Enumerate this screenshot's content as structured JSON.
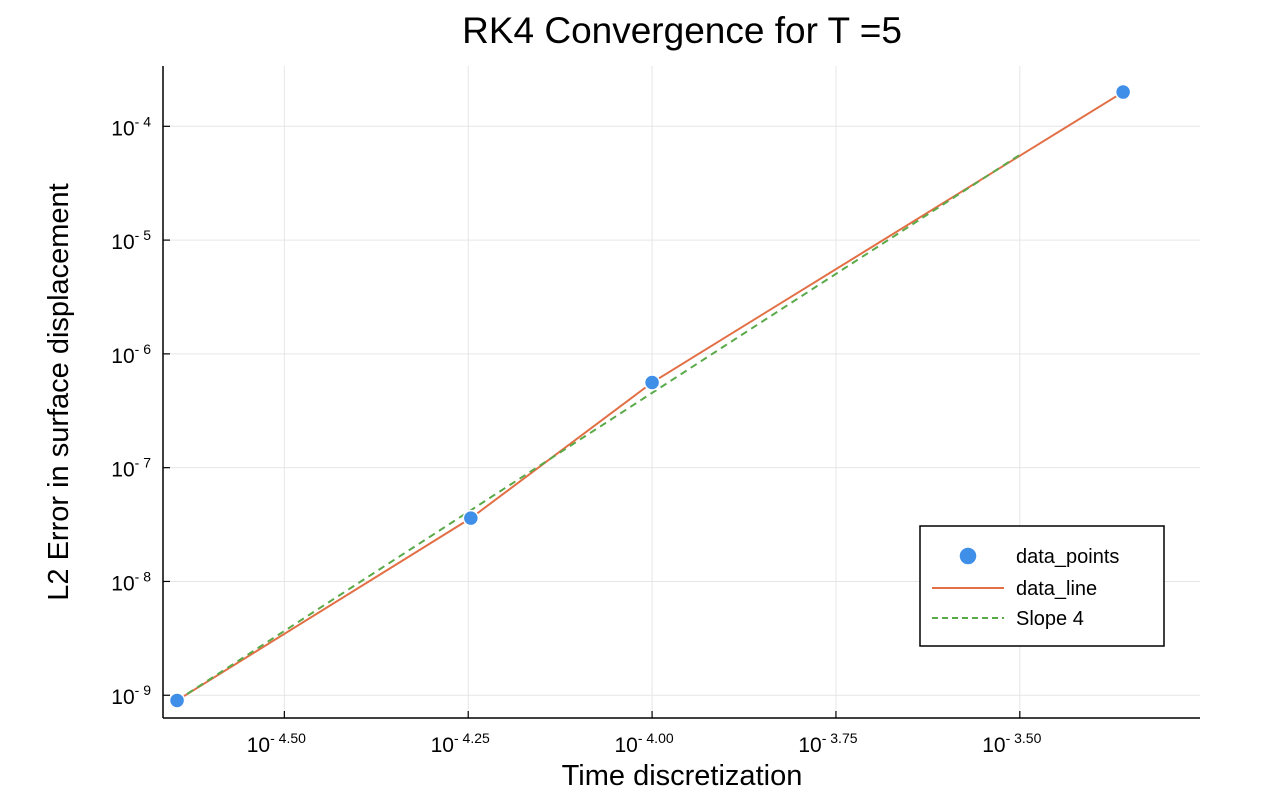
{
  "chart_data": {
    "type": "scatter",
    "title": "RK4 Convergence for T =5",
    "xlabel": "Time discretization",
    "ylabel": "L2 Error in surface displacement",
    "xscale": "log10",
    "yscale": "log10",
    "xlim_log10": [
      -4.665,
      -3.255
    ],
    "ylim_log10": [
      -9.2,
      -3.47
    ],
    "x_ticks": [
      {
        "base": "10",
        "exp": "- 4.50",
        "value_log10": -4.5
      },
      {
        "base": "10",
        "exp": "- 4.25",
        "value_log10": -4.25
      },
      {
        "base": "10",
        "exp": "- 4.00",
        "value_log10": -4.0
      },
      {
        "base": "10",
        "exp": "- 3.75",
        "value_log10": -3.75
      },
      {
        "base": "10",
        "exp": "- 3.50",
        "value_log10": -3.5
      }
    ],
    "y_ticks": [
      {
        "base": "10",
        "exp": "- 4",
        "value_log10": -4
      },
      {
        "base": "10",
        "exp": "- 5",
        "value_log10": -5
      },
      {
        "base": "10",
        "exp": "- 6",
        "value_log10": -6
      },
      {
        "base": "10",
        "exp": "- 7",
        "value_log10": -7
      },
      {
        "base": "10",
        "exp": "- 8",
        "value_log10": -8
      },
      {
        "base": "10",
        "exp": "- 9",
        "value_log10": -9
      }
    ],
    "grid": true,
    "legend_position": "bottom-right",
    "series": [
      {
        "name": "data_points",
        "kind": "scatter",
        "color": "#3f8fe8",
        "points": [
          {
            "x": 2.26e-05,
            "y": 9e-10
          },
          {
            "x": 5.67e-05,
            "y": 3.6e-08
          },
          {
            "x": 0.0001,
            "y": 5.6e-07
          },
          {
            "x": 0.000437,
            "y": 0.0002
          }
        ]
      },
      {
        "name": "data_line",
        "kind": "line",
        "color": "#e26f46",
        "points": [
          {
            "x": 2.26e-05,
            "y": 9e-10
          },
          {
            "x": 5.67e-05,
            "y": 3.6e-08
          },
          {
            "x": 0.0001,
            "y": 5.6e-07
          },
          {
            "x": 0.000437,
            "y": 0.0002
          }
        ]
      },
      {
        "name": "Slope 4",
        "kind": "line",
        "dash": true,
        "color": "#5aaa4a",
        "points": [
          {
            "x": 2.26e-05,
            "y": 9e-10
          },
          {
            "x": 0.000316,
            "y": 5.6e-05
          }
        ]
      }
    ]
  }
}
